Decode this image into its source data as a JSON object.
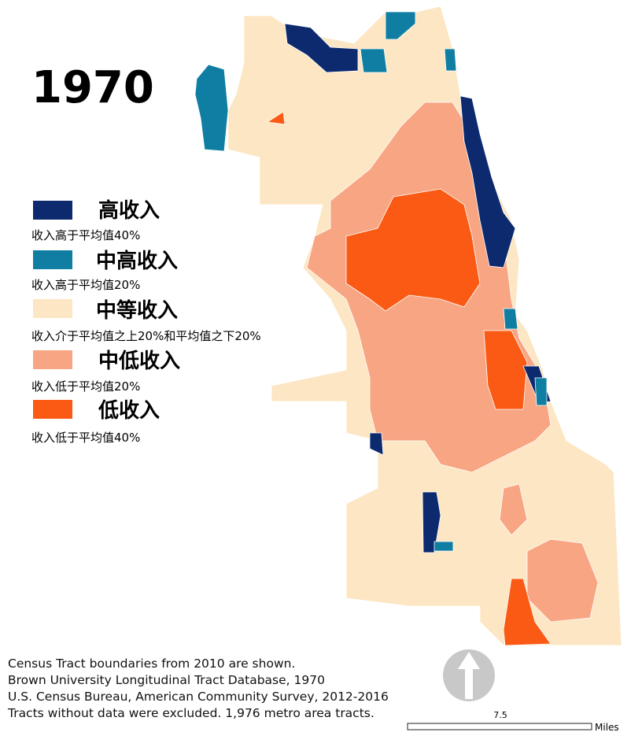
{
  "title": "1970",
  "legend": {
    "items": [
      {
        "label": "高收入",
        "description": "收入高于平均值40%",
        "color": "#0c2a6d"
      },
      {
        "label": "中高收入",
        "description": "收入高于平均值20%",
        "color": "#0f7ea2"
      },
      {
        "label": "中等收入",
        "description": "收入介于平均值之上20%和平均值之下20%",
        "color": "#fde6c3"
      },
      {
        "label": "中低收入",
        "description": "收入低于平均值20%",
        "color": "#f8a583"
      },
      {
        "label": "低收入",
        "description": "收入低于平均值40%",
        "color": "#fa5a14"
      }
    ]
  },
  "notes": [
    "Census Tract boundaries from 2010 are shown.",
    "Brown University Longitudinal Tract Database, 1970",
    "U.S. Census Bureau, American Community Survey, 2012-2016",
    "Tracts without data were excluded. 1,976 metro area tracts."
  ],
  "scale": {
    "label": "7.5",
    "unit": "Miles"
  }
}
